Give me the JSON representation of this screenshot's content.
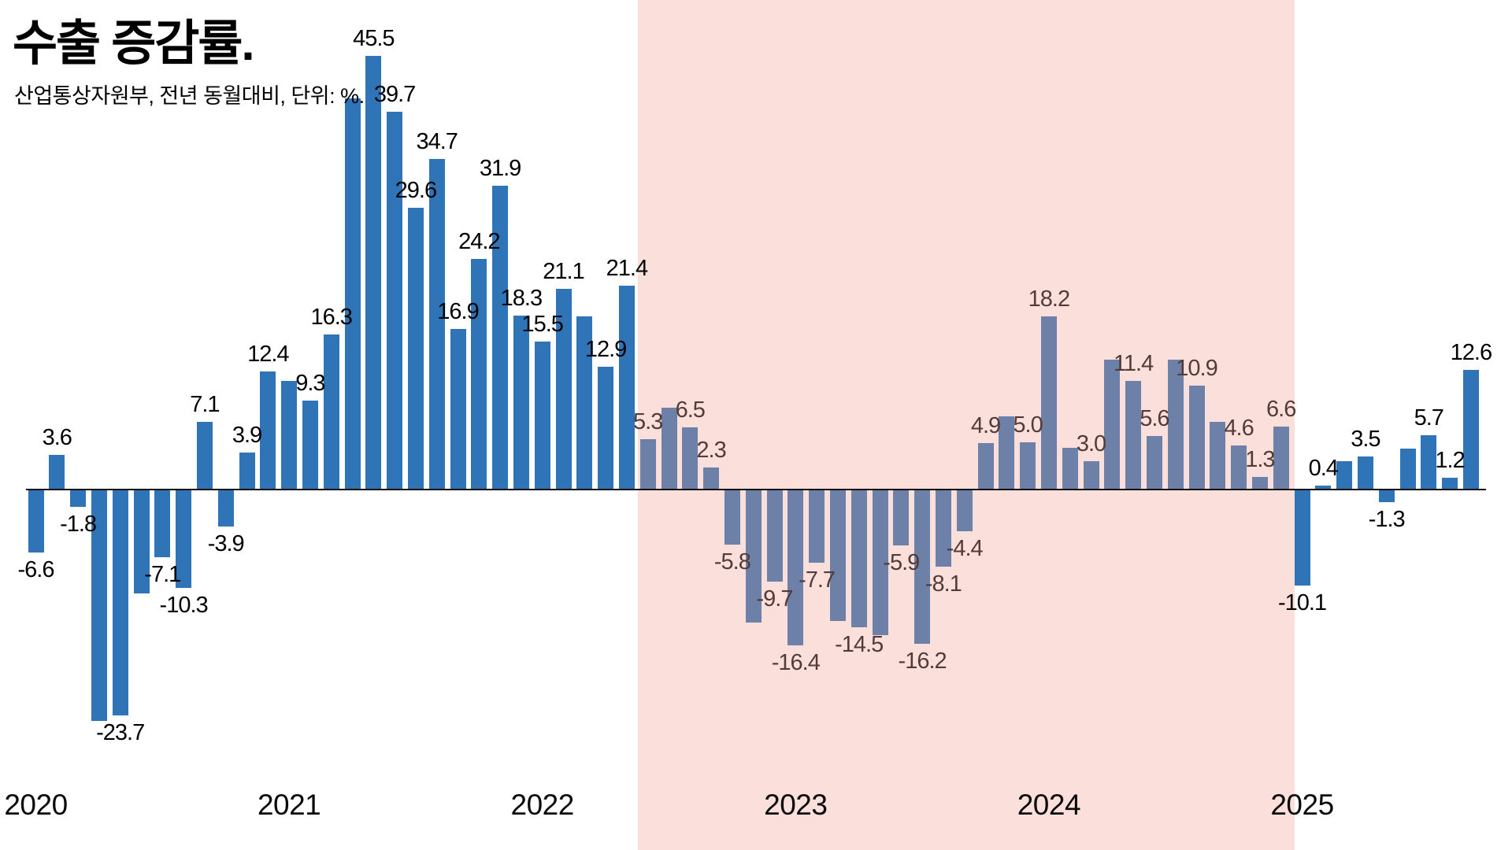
{
  "header": {
    "title": "수출 증감률.",
    "subtitle": "산업통상자원부, 전년 동월대비, 단위: %."
  },
  "colors": {
    "bar_blue": "#2e74b6",
    "bar_muted_blue": "#6d80a8",
    "highlight_pink": "#fbdfda",
    "label_black": "#000000",
    "label_brown": "#523b39",
    "axis_black": "#111111"
  },
  "chart_data": {
    "type": "bar",
    "title": "수출 증감률.",
    "subtitle": "산업통상자원부, 전년 동월대비, 단위: %.",
    "source": "산업통상자원부",
    "unit": "%",
    "comparison": "전년 동월대비",
    "ylim": [
      -27,
      47
    ],
    "grid": false,
    "legend": false,
    "x_axis_year_ticks": [
      "2020",
      "2021",
      "2022",
      "2023",
      "2024",
      "2025"
    ],
    "highlight_band": {
      "from": "2022-06",
      "to": "2024-12",
      "color": "#fbdfda"
    },
    "series": [
      {
        "name": "수출 증감률 (전년 동월대비, %)",
        "points": [
          {
            "m": "2020-01",
            "v": -6.6,
            "labeled": true
          },
          {
            "m": "2020-02",
            "v": 3.6,
            "labeled": true
          },
          {
            "m": "2020-03",
            "v": -1.8,
            "labeled": true
          },
          {
            "m": "2020-04",
            "v": -24.3,
            "labeled": false
          },
          {
            "m": "2020-05",
            "v": -23.7,
            "labeled": true
          },
          {
            "m": "2020-06",
            "v": -10.9,
            "labeled": false
          },
          {
            "m": "2020-07",
            "v": -7.1,
            "labeled": true
          },
          {
            "m": "2020-08",
            "v": -10.3,
            "labeled": true
          },
          {
            "m": "2020-09",
            "v": 7.1,
            "labeled": true
          },
          {
            "m": "2020-10",
            "v": -3.9,
            "labeled": true
          },
          {
            "m": "2020-11",
            "v": 3.9,
            "labeled": true
          },
          {
            "m": "2020-12",
            "v": 12.4,
            "labeled": true
          },
          {
            "m": "2021-01",
            "v": 11.4,
            "labeled": false
          },
          {
            "m": "2021-02",
            "v": 9.3,
            "labeled": true
          },
          {
            "m": "2021-03",
            "v": 16.3,
            "labeled": true
          },
          {
            "m": "2021-04",
            "v": 41.1,
            "labeled": false
          },
          {
            "m": "2021-05",
            "v": 45.5,
            "labeled": true
          },
          {
            "m": "2021-06",
            "v": 39.7,
            "labeled": true
          },
          {
            "m": "2021-07",
            "v": 29.6,
            "labeled": true
          },
          {
            "m": "2021-08",
            "v": 34.7,
            "labeled": true
          },
          {
            "m": "2021-09",
            "v": 16.9,
            "labeled": true
          },
          {
            "m": "2021-10",
            "v": 24.2,
            "labeled": true
          },
          {
            "m": "2021-11",
            "v": 31.9,
            "labeled": true
          },
          {
            "m": "2021-12",
            "v": 18.3,
            "labeled": true
          },
          {
            "m": "2022-01",
            "v": 15.5,
            "labeled": true
          },
          {
            "m": "2022-02",
            "v": 21.1,
            "labeled": true
          },
          {
            "m": "2022-03",
            "v": 18.2,
            "labeled": false
          },
          {
            "m": "2022-04",
            "v": 12.9,
            "labeled": true
          },
          {
            "m": "2022-05",
            "v": 21.4,
            "labeled": true
          },
          {
            "m": "2022-06",
            "v": 5.3,
            "labeled": true
          },
          {
            "m": "2022-07",
            "v": 8.6,
            "labeled": false
          },
          {
            "m": "2022-08",
            "v": 6.5,
            "labeled": true
          },
          {
            "m": "2022-09",
            "v": 2.3,
            "labeled": true
          },
          {
            "m": "2022-10",
            "v": -5.8,
            "labeled": true
          },
          {
            "m": "2022-11",
            "v": -14.0,
            "labeled": false
          },
          {
            "m": "2022-12",
            "v": -9.7,
            "labeled": true
          },
          {
            "m": "2023-01",
            "v": -16.4,
            "labeled": true
          },
          {
            "m": "2023-02",
            "v": -7.7,
            "labeled": true
          },
          {
            "m": "2023-03",
            "v": -13.8,
            "labeled": false
          },
          {
            "m": "2023-04",
            "v": -14.5,
            "labeled": true
          },
          {
            "m": "2023-05",
            "v": -15.3,
            "labeled": false
          },
          {
            "m": "2023-06",
            "v": -5.9,
            "labeled": true
          },
          {
            "m": "2023-07",
            "v": -16.2,
            "labeled": true
          },
          {
            "m": "2023-08",
            "v": -8.1,
            "labeled": true
          },
          {
            "m": "2023-09",
            "v": -4.4,
            "labeled": true
          },
          {
            "m": "2023-10",
            "v": 4.9,
            "labeled": true
          },
          {
            "m": "2023-11",
            "v": 7.7,
            "labeled": false
          },
          {
            "m": "2023-12",
            "v": 5.0,
            "labeled": true
          },
          {
            "m": "2024-01",
            "v": 18.2,
            "labeled": true
          },
          {
            "m": "2024-02",
            "v": 4.4,
            "labeled": false
          },
          {
            "m": "2024-03",
            "v": 3.0,
            "labeled": true
          },
          {
            "m": "2024-04",
            "v": 13.6,
            "labeled": false
          },
          {
            "m": "2024-05",
            "v": 11.4,
            "labeled": true
          },
          {
            "m": "2024-06",
            "v": 5.6,
            "labeled": true
          },
          {
            "m": "2024-07",
            "v": 13.6,
            "labeled": false
          },
          {
            "m": "2024-08",
            "v": 10.9,
            "labeled": true
          },
          {
            "m": "2024-09",
            "v": 7.1,
            "labeled": false
          },
          {
            "m": "2024-10",
            "v": 4.6,
            "labeled": true
          },
          {
            "m": "2024-11",
            "v": 1.3,
            "labeled": true
          },
          {
            "m": "2024-12",
            "v": 6.6,
            "labeled": true
          },
          {
            "m": "2025-01",
            "v": -10.1,
            "labeled": true
          },
          {
            "m": "2025-02",
            "v": 0.4,
            "labeled": true
          },
          {
            "m": "2025-03",
            "v": 3.0,
            "labeled": false
          },
          {
            "m": "2025-04",
            "v": 3.5,
            "labeled": true
          },
          {
            "m": "2025-05",
            "v": -1.3,
            "labeled": true
          },
          {
            "m": "2025-06",
            "v": 4.3,
            "labeled": false
          },
          {
            "m": "2025-07",
            "v": 5.7,
            "labeled": true
          },
          {
            "m": "2025-08",
            "v": 1.2,
            "labeled": true
          },
          {
            "m": "2025-09",
            "v": 12.6,
            "labeled": true
          }
        ]
      }
    ]
  }
}
